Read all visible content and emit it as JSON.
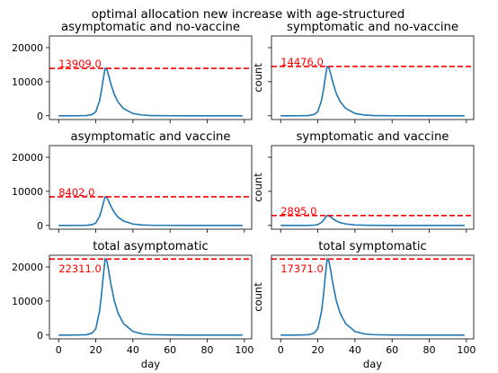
{
  "suptitle": "optimal allocation  new increase with age-structured",
  "chart_data": [
    {
      "type": "line",
      "title": "asymptomatic and no-vaccine",
      "xlabel": "",
      "ylabel": "",
      "xlim": [
        -4.95,
        103.95
      ],
      "ylim": [
        -1115.55,
        23426.55
      ],
      "xticks": [
        0,
        20,
        40,
        60,
        80,
        100
      ],
      "xticklabels": [
        "",
        "",
        "",
        "",
        "",
        ""
      ],
      "yticks": [
        0,
        10000,
        20000
      ],
      "yticklabels": [
        "0",
        "10000",
        "20000"
      ],
      "peak": 13909.0,
      "peak_label": "13909.0",
      "peak_label_pos": "above",
      "series": [
        {
          "x": [
            0,
            5,
            10,
            15,
            18,
            20,
            22,
            23,
            24,
            25,
            26,
            27,
            28,
            30,
            32,
            35,
            40,
            45,
            50,
            60,
            70,
            80,
            90,
            99
          ],
          "y": [
            0,
            1,
            6,
            60,
            351,
            1147,
            4307,
            7143,
            10657,
            13909,
            13490,
            11685,
            9577,
            6230,
            4004,
            2085,
            658,
            206,
            64,
            6,
            0,
            0,
            0,
            0
          ]
        }
      ],
      "line_color": "#1f77b4",
      "peak_color": "#ff0000"
    },
    {
      "type": "line",
      "title": "symptomatic and no-vaccine",
      "xlabel": "",
      "ylabel": "count",
      "xlim": [
        -4.95,
        103.95
      ],
      "ylim": [
        -1115.55,
        23426.55
      ],
      "xticks": [
        0,
        20,
        40,
        60,
        80,
        100
      ],
      "xticklabels": [
        "",
        "",
        "",
        "",
        "",
        ""
      ],
      "yticks": [
        0,
        10000,
        20000
      ],
      "yticklabels": [
        "",
        "",
        ""
      ],
      "peak": 14476.0,
      "peak_label": "14476.0",
      "peak_label_pos": "above",
      "series": [
        {
          "x": [
            0,
            5,
            10,
            15,
            18,
            20,
            22,
            23,
            24,
            25,
            26,
            27,
            28,
            30,
            32,
            35,
            40,
            45,
            50,
            60,
            70,
            80,
            90,
            99
          ],
          "y": [
            0,
            1,
            6,
            62,
            365,
            1194,
            4482,
            7434,
            11091,
            14476,
            14040,
            12161,
            9967,
            6484,
            4167,
            2170,
            685,
            214,
            67,
            6,
            0,
            0,
            0,
            0
          ]
        }
      ],
      "line_color": "#1f77b4",
      "peak_color": "#ff0000"
    },
    {
      "type": "line",
      "title": "asymptomatic and vaccine",
      "xlabel": "",
      "ylabel": "",
      "xlim": [
        -4.95,
        103.95
      ],
      "ylim": [
        -1115.55,
        23426.55
      ],
      "xticks": [
        0,
        20,
        40,
        60,
        80,
        100
      ],
      "xticklabels": [
        "",
        "",
        "",
        "",
        "",
        ""
      ],
      "yticks": [
        0,
        10000,
        20000
      ],
      "yticklabels": [
        "0",
        "10000",
        "20000"
      ],
      "peak": 8402.0,
      "peak_label": "8402.0",
      "peak_label_pos": "above",
      "series": [
        {
          "x": [
            0,
            5,
            10,
            15,
            18,
            20,
            22,
            23,
            24,
            25,
            26,
            27,
            28,
            30,
            32,
            35,
            40,
            45,
            50,
            60,
            70,
            80,
            90,
            99
          ],
          "y": [
            0,
            1,
            4,
            36,
            212,
            693,
            2601,
            4315,
            6437,
            8402,
            8149,
            7058,
            5785,
            3763,
            2419,
            1259,
            398,
            124,
            39,
            4,
            0,
            0,
            0,
            0
          ]
        }
      ],
      "line_color": "#1f77b4",
      "peak_color": "#ff0000"
    },
    {
      "type": "line",
      "title": "symptomatic and vaccine",
      "xlabel": "",
      "ylabel": "count",
      "xlim": [
        -4.95,
        103.95
      ],
      "ylim": [
        -1115.55,
        23426.55
      ],
      "xticks": [
        0,
        20,
        40,
        60,
        80,
        100
      ],
      "xticklabels": [
        "",
        "",
        "",
        "",
        "",
        ""
      ],
      "yticks": [
        0,
        10000,
        20000
      ],
      "yticklabels": [
        "",
        "",
        ""
      ],
      "peak": 2895.0,
      "peak_label": "2895.0",
      "peak_label_pos": "above",
      "series": [
        {
          "x": [
            0,
            5,
            10,
            15,
            18,
            20,
            22,
            23,
            24,
            25,
            26,
            27,
            28,
            30,
            32,
            35,
            40,
            45,
            50,
            60,
            70,
            80,
            90,
            99
          ],
          "y": [
            0,
            0,
            1,
            12,
            73,
            239,
            896,
            1487,
            2218,
            2895,
            2808,
            2432,
            1993,
            1297,
            833,
            434,
            137,
            43,
            13,
            1,
            0,
            0,
            0,
            0
          ]
        }
      ],
      "line_color": "#1f77b4",
      "peak_color": "#ff0000"
    },
    {
      "type": "line",
      "title": "total asymptomatic",
      "xlabel": "day",
      "ylabel": "",
      "xlim": [
        -4.95,
        103.95
      ],
      "ylim": [
        -1115.55,
        23426.55
      ],
      "xticks": [
        0,
        20,
        40,
        60,
        80,
        100
      ],
      "xticklabels": [
        "0",
        "20",
        "40",
        "60",
        "80",
        "100"
      ],
      "yticks": [
        0,
        10000,
        20000
      ],
      "yticklabels": [
        "0",
        "10000",
        "20000"
      ],
      "peak": 22311.0,
      "peak_label": "22311.0",
      "peak_label_pos": "below",
      "series": [
        {
          "x": [
            0,
            5,
            10,
            15,
            18,
            20,
            22,
            23,
            24,
            25,
            26,
            27,
            28,
            30,
            32,
            35,
            40,
            45,
            50,
            60,
            70,
            80,
            90,
            99
          ],
          "y": [
            0,
            2,
            10,
            96,
            563,
            1840,
            6908,
            11458,
            17094,
            22311,
            21639,
            18743,
            15362,
            9993,
            6423,
            3345,
            1056,
            330,
            103,
            10,
            1,
            0,
            0,
            0
          ]
        }
      ],
      "line_color": "#1f77b4",
      "peak_color": "#ff0000"
    },
    {
      "type": "line",
      "title": "total symptomatic",
      "xlabel": "day",
      "ylabel": "count",
      "xlim": [
        -4.95,
        103.95
      ],
      "ylim": [
        -868.55,
        18239.55
      ],
      "xticks": [
        0,
        20,
        40,
        60,
        80,
        100
      ],
      "xticklabels": [
        "0",
        "20",
        "40",
        "60",
        "80",
        "100"
      ],
      "yticks": [],
      "yticklabels": [],
      "peak": 17371.0,
      "peak_label": "17371.0",
      "peak_label_pos": "below",
      "series": [
        {
          "x": [
            0,
            5,
            10,
            15,
            18,
            20,
            22,
            23,
            24,
            25,
            26,
            27,
            28,
            30,
            32,
            35,
            40,
            45,
            50,
            60,
            70,
            80,
            90,
            99
          ],
          "y": [
            0,
            1,
            7,
            74,
            438,
            1433,
            5378,
            8921,
            13309,
            17371,
            16848,
            14593,
            11960,
            7781,
            5001,
            2604,
            822,
            257,
            80,
            7,
            1,
            0,
            0,
            0
          ]
        }
      ],
      "line_color": "#1f77b4",
      "peak_color": "#ff0000"
    }
  ]
}
